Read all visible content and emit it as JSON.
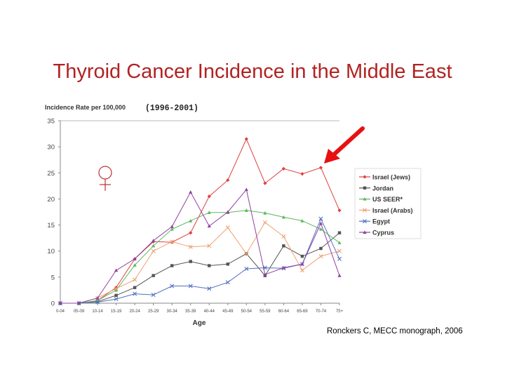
{
  "slide": {
    "title": "Thyroid Cancer Incidence in the Middle East",
    "citation": "Ronckers C, MECC monograph, 2006"
  },
  "chart_data": {
    "type": "line",
    "title": "",
    "subtitle": "(1996-2001)",
    "ylabel": "Incidence Rate per 100,000",
    "xlabel": "Age",
    "ylim": [
      0,
      35
    ],
    "yticks": [
      0,
      5,
      10,
      15,
      20,
      25,
      30,
      35
    ],
    "grid": false,
    "legend_position": "right",
    "annotations": {
      "female_symbol": "♀",
      "arrow": "points to Israel (Jews) line"
    },
    "categories": [
      "0-04",
      "05-09",
      "10-14",
      "15-19",
      "20-24",
      "25-29",
      "30-34",
      "35-39",
      "40-44",
      "45-49",
      "50-54",
      "55-59",
      "60-64",
      "65-69",
      "70-74",
      "75+"
    ],
    "series": [
      {
        "name": "Israel (Jews)",
        "color": "#e04040",
        "marker": "diamond",
        "values": [
          0,
          0,
          0.5,
          3.0,
          8.5,
          11.8,
          11.7,
          13.5,
          20.5,
          23.6,
          31.5,
          23.0,
          25.8,
          24.8,
          26.0,
          17.8
        ]
      },
      {
        "name": "Jordan",
        "color": "#555555",
        "marker": "square",
        "values": [
          0,
          0,
          0.3,
          1.5,
          3.0,
          5.3,
          7.2,
          8.0,
          7.2,
          7.5,
          9.5,
          5.3,
          11.0,
          9.0,
          10.5,
          13.5
        ]
      },
      {
        "name": "US SEER*",
        "color": "#5cb85c",
        "marker": "triangle",
        "values": [
          0,
          0,
          0.5,
          2.5,
          7.3,
          11.0,
          14.2,
          15.8,
          17.4,
          17.4,
          17.8,
          17.3,
          16.5,
          15.8,
          14.2,
          11.6
        ]
      },
      {
        "name": "Israel (Arabs)",
        "color": "#f0a070",
        "marker": "x",
        "values": [
          0,
          0,
          1.0,
          2.8,
          4.5,
          10.0,
          11.8,
          10.8,
          11.0,
          14.5,
          9.5,
          15.5,
          12.8,
          6.3,
          9.0,
          10.0
        ]
      },
      {
        "name": "Egypt",
        "color": "#5070c0",
        "marker": "x",
        "values": [
          0,
          0,
          0.2,
          0.8,
          1.8,
          1.6,
          3.3,
          3.3,
          2.8,
          4.0,
          6.6,
          6.8,
          6.7,
          7.5,
          16.2,
          8.5
        ]
      },
      {
        "name": "Cyprus",
        "color": "#9040a0",
        "marker": "triangle",
        "values": [
          0,
          0,
          1.0,
          6.3,
          8.5,
          12.0,
          14.7,
          21.3,
          14.8,
          17.5,
          21.8,
          5.5,
          6.8,
          7.5,
          15.3,
          5.3
        ]
      }
    ]
  }
}
